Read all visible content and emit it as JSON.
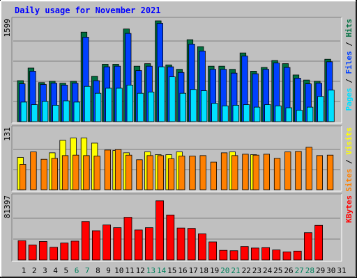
{
  "chart_data": {
    "type": "bar",
    "title": "Daily usage for November 2021",
    "days": [
      "1",
      "2",
      "3",
      "4",
      "5",
      "6",
      "7",
      "8",
      "9",
      "10",
      "11",
      "12",
      "13",
      "14",
      "15",
      "16",
      "17",
      "18",
      "19",
      "20",
      "21",
      "22",
      "23",
      "24",
      "25",
      "26",
      "27",
      "28",
      "29",
      "30",
      "31"
    ],
    "weekend_days": [
      "6",
      "7",
      "13",
      "14",
      "20",
      "21",
      "27",
      "28"
    ],
    "panels": [
      {
        "id": "hits-files-pages",
        "max_label": "1599",
        "ymax": 1599,
        "labels": [
          "Pages",
          "Files",
          "Hits"
        ],
        "series": [
          {
            "name": "Hits",
            "color": "#007040",
            "values": [
              650,
              850,
              620,
              640,
              610,
              640,
              1420,
              720,
              910,
              910,
              1470,
              880,
              920,
              1610,
              900,
              830,
              1300,
              1190,
              880,
              880,
              830,
              1090,
              800,
              860,
              970,
              920,
              740,
              660,
              640,
              990,
              0
            ]
          },
          {
            "name": "Files",
            "color": "#0040ff",
            "values": [
              600,
              800,
              590,
              610,
              580,
              610,
              1340,
              650,
              870,
              880,
              1400,
              810,
              880,
              1560,
              870,
              780,
              1230,
              1120,
              830,
              830,
              770,
              1040,
              760,
              830,
              930,
              860,
              690,
              600,
              610,
              950,
              0
            ]
          },
          {
            "name": "Pages",
            "color": "#00e0ff",
            "values": [
              310,
              270,
              320,
              260,
              330,
              310,
              560,
              450,
              530,
              530,
              580,
              450,
              470,
              870,
              710,
              450,
              510,
              490,
              290,
              250,
              260,
              270,
              230,
              270,
              250,
              220,
              180,
              230,
              400,
              500,
              0
            ]
          }
        ]
      },
      {
        "id": "visits-sites",
        "max_label": "131",
        "ymax": 131,
        "labels": [
          "Sites",
          "Visits"
        ],
        "series": [
          {
            "name": "Visits",
            "color": "#ffff00",
            "values": [
              70,
              0,
              0,
              80,
              107,
              112,
              112,
              101,
              0,
              85,
              80,
              0,
              82,
              76,
              76,
              82,
              0,
              0,
              0,
              0,
              82,
              0,
              76,
              0,
              0,
              0,
              0,
              0,
              0,
              0,
              0
            ]
          },
          {
            "name": "Sites",
            "color": "#ff8000",
            "values": [
              55,
              82,
              66,
              68,
              74,
              75,
              74,
              73,
              86,
              87,
              75,
              65,
              74,
              74,
              67,
              73,
              73,
              74,
              60,
              80,
              74,
              77,
              75,
              77,
              68,
              82,
              83,
              92,
              74,
              75,
              0
            ]
          }
        ]
      },
      {
        "id": "kbytes",
        "max_label": "81397",
        "ymax": 81397,
        "labels": [
          "KBytes"
        ],
        "series": [
          {
            "name": "KBytes",
            "color": "#ff0000",
            "values": [
              25000,
              19500,
              24000,
              16500,
              22000,
              24500,
              50000,
              38000,
              45500,
              42000,
              55500,
              39000,
              42000,
              77000,
              58500,
              41500,
              41000,
              34000,
              23500,
              12500,
              12000,
              17500,
              15500,
              16000,
              13000,
              10500,
              11500,
              35500,
              45000,
              0,
              0
            ]
          }
        ]
      }
    ]
  }
}
